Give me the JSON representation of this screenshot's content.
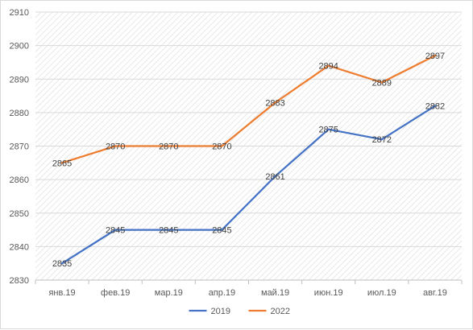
{
  "chart_data": {
    "type": "line",
    "title": "",
    "xlabel": "",
    "ylabel": "",
    "categories": [
      "янв.19",
      "фев.19",
      "мар.19",
      "апр.19",
      "май.19",
      "июн.19",
      "июл.19",
      "авг.19"
    ],
    "y_ticks": [
      "2830",
      "2840",
      "2850",
      "2860",
      "2870",
      "2880",
      "2890",
      "2900",
      "2910"
    ],
    "ylim": [
      2830,
      2910
    ],
    "grid": "horizontal",
    "plot_background": "diagonal-hatch",
    "legend_position": "bottom",
    "data_labels": true,
    "series": [
      {
        "name": "2019",
        "color": "#4472c4",
        "values": [
          2835,
          2845,
          2845,
          2845,
          2861,
          2875,
          2872,
          2882
        ],
        "labels": [
          "2835",
          "2845",
          "2845",
          "2845",
          "2861",
          "2875",
          "2872",
          "2882"
        ]
      },
      {
        "name": "2022",
        "color": "#ed7d31",
        "values": [
          2865,
          2870,
          2870,
          2870,
          2883,
          2894,
          2889,
          2897
        ],
        "labels": [
          "2865",
          "2870",
          "2870",
          "2870",
          "2883",
          "2894",
          "2889",
          "2897"
        ]
      }
    ]
  }
}
